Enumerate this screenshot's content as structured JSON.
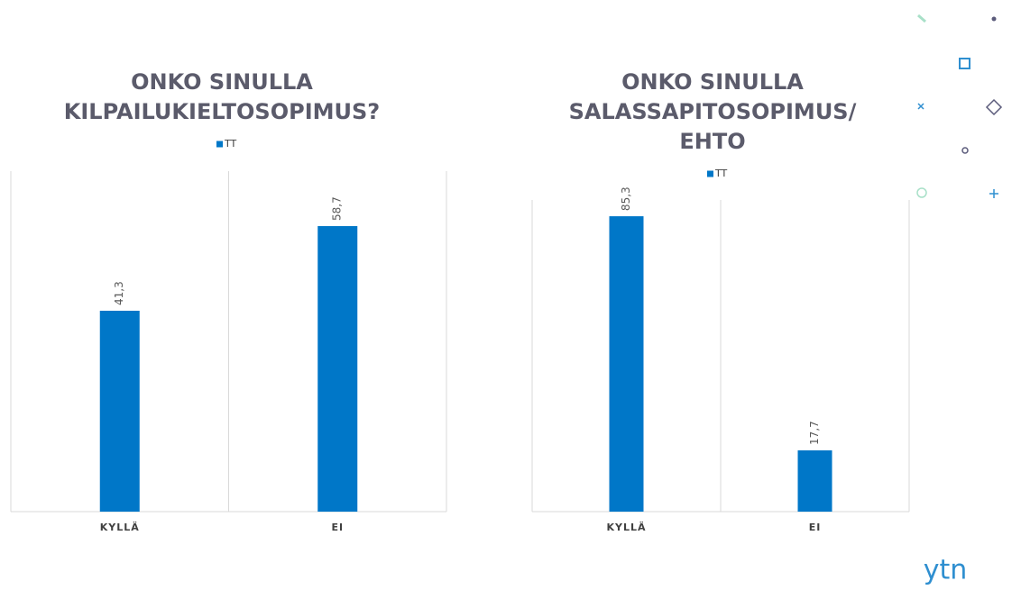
{
  "chart_data": [
    {
      "type": "bar",
      "title": "ONKO SINULLA KILPAILUKIELTOSOPIMUS?",
      "categories": [
        "KYLLÄ",
        "EI"
      ],
      "series": [
        {
          "name": "TT",
          "color": "#0077c8",
          "values": [
            41.3,
            58.7
          ],
          "value_labels": [
            "41,3",
            "58,7"
          ]
        }
      ],
      "ylim": [
        0,
        70
      ]
    },
    {
      "type": "bar",
      "title": "ONKO SINULLA SALASSAPITOSOPIMUS/EHTO",
      "categories": [
        "KYLLÄ",
        "EI"
      ],
      "series": [
        {
          "name": "TT",
          "color": "#0077c8",
          "values": [
            85.3,
            17.7
          ],
          "value_labels": [
            "85,3",
            "17,7"
          ]
        }
      ],
      "ylim": [
        0,
        90
      ]
    }
  ],
  "logo": "ytn"
}
